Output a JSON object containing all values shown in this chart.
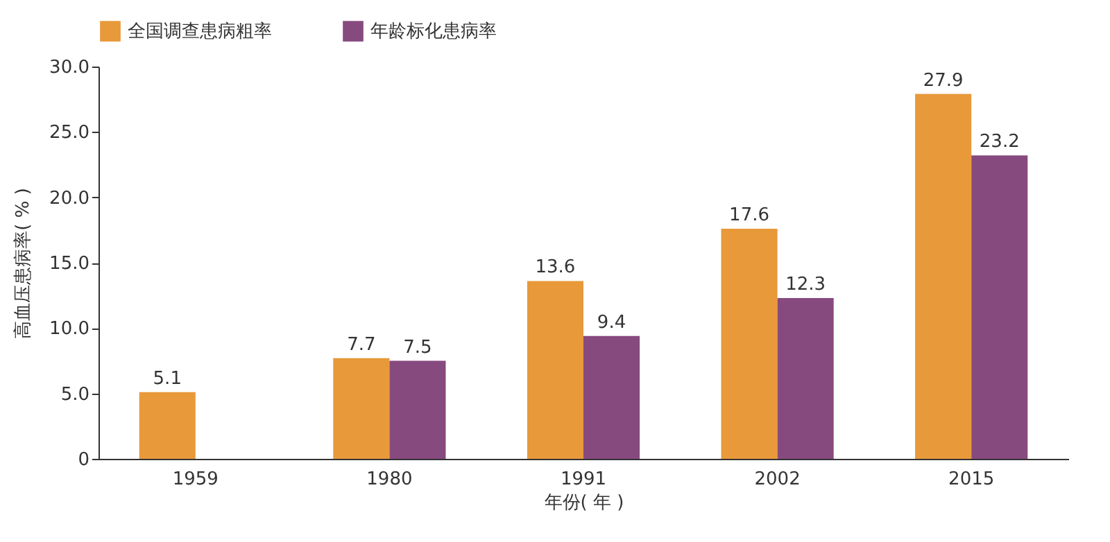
{
  "chart_data": {
    "type": "bar",
    "xlabel": "年份( 年 )",
    "ylabel": "高血压患病率( % )",
    "categories": [
      "1959",
      "1980",
      "1991",
      "2002",
      "2015"
    ],
    "series": [
      {
        "name": "全国调查患病粗率",
        "color": "#e8993a",
        "values": [
          5.1,
          7.7,
          13.6,
          17.6,
          27.9
        ]
      },
      {
        "name": "年龄标化患病率",
        "color": "#874a7f",
        "values": [
          null,
          7.5,
          9.4,
          12.3,
          23.2
        ]
      }
    ],
    "ylim": [
      0,
      30
    ],
    "yticks": [
      0,
      {
        "value": 5,
        "label": "5.0"
      },
      {
        "value": 10,
        "label": "10.0"
      },
      {
        "value": 15,
        "label": "15.0"
      },
      {
        "value": 20,
        "label": "20.0"
      },
      {
        "value": 25,
        "label": "25.0"
      },
      {
        "value": 30,
        "label": "30.0"
      }
    ],
    "grid": false,
    "legend": "top",
    "data_labels": true
  }
}
